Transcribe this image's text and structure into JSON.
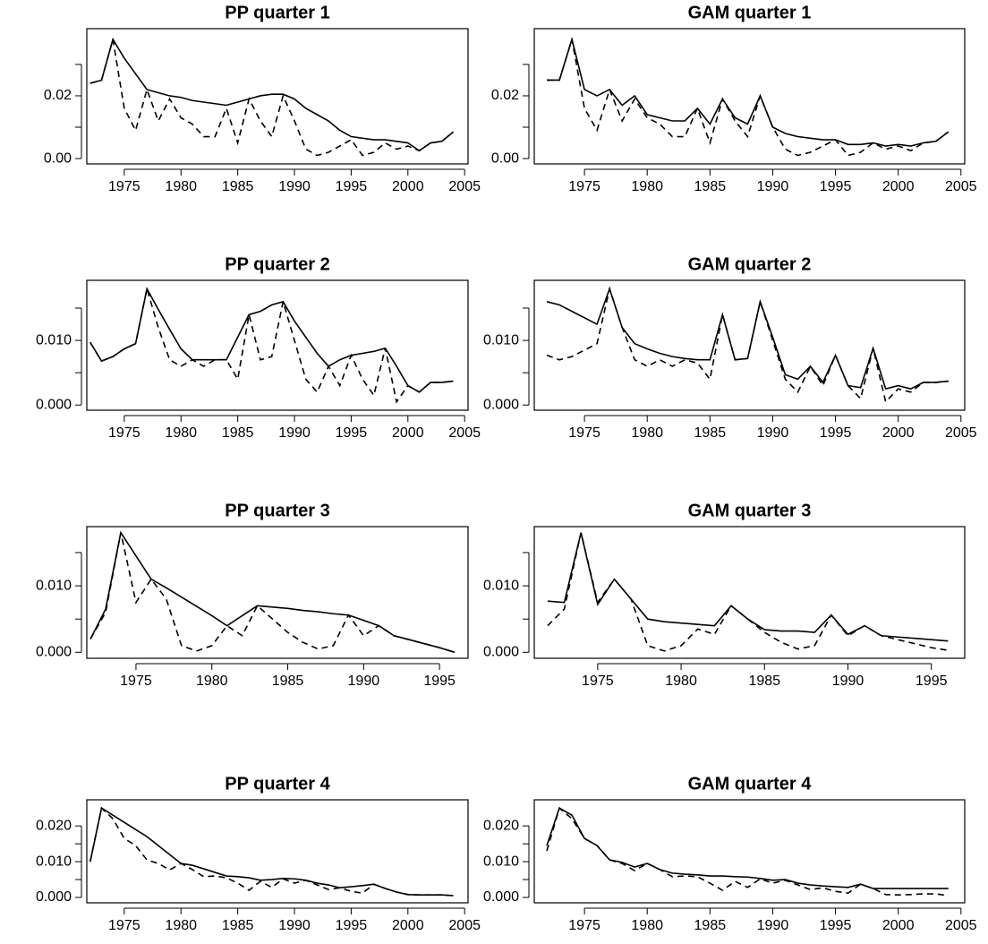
{
  "chart_data": [
    {
      "type": "line",
      "title": "PP quarter 1",
      "x": [
        1972,
        1973,
        1974,
        1975,
        1976,
        1977,
        1978,
        1979,
        1980,
        1981,
        1982,
        1983,
        1984,
        1985,
        1986,
        1987,
        1988,
        1989,
        1990,
        1991,
        1992,
        1993,
        1994,
        1995,
        1996,
        1997,
        1998,
        1999,
        2000,
        2001,
        2002,
        2003,
        2004
      ],
      "series": [
        {
          "linestyle": "solid",
          "color": "#000000",
          "values": [
            0.024,
            0.025,
            0.038,
            0.032,
            0.027,
            0.022,
            0.021,
            0.02,
            0.0195,
            0.0185,
            0.018,
            0.0175,
            0.017,
            0.018,
            0.019,
            0.02,
            0.0205,
            0.0205,
            0.019,
            0.016,
            0.014,
            0.012,
            0.009,
            0.007,
            0.0065,
            0.006,
            0.006,
            0.0055,
            0.005,
            0.0025,
            0.005,
            0.0055,
            0.0085
          ]
        },
        {
          "linestyle": "dashed",
          "color": "#000000",
          "values": [
            0.024,
            0.025,
            0.038,
            0.016,
            0.009,
            0.022,
            0.012,
            0.019,
            0.013,
            0.011,
            0.007,
            0.007,
            0.016,
            0.005,
            0.019,
            0.012,
            0.007,
            0.02,
            0.012,
            0.003,
            0.001,
            0.002,
            0.004,
            0.006,
            0.001,
            0.002,
            0.005,
            0.003,
            0.004,
            0.0025,
            0.005,
            0.0055,
            0.0085
          ]
        }
      ],
      "xlim": [
        1971.7,
        2005.3
      ],
      "ylim": [
        -0.0017,
        0.0414
      ],
      "xticks": [
        1975,
        1980,
        1985,
        1990,
        1995,
        2000,
        2005
      ],
      "yticks": [
        {
          "value": 0,
          "label": "0.00"
        },
        0.02
      ],
      "minor_yticks": [
        0.01,
        0.03
      ]
    },
    {
      "type": "line",
      "title": "GAM quarter 1",
      "x": [
        1972,
        1973,
        1974,
        1975,
        1976,
        1977,
        1978,
        1979,
        1980,
        1981,
        1982,
        1983,
        1984,
        1985,
        1986,
        1987,
        1988,
        1989,
        1990,
        1991,
        1992,
        1993,
        1994,
        1995,
        1996,
        1997,
        1998,
        1999,
        2000,
        2001,
        2002,
        2003,
        2004
      ],
      "series": [
        {
          "linestyle": "solid",
          "color": "#000000",
          "values": [
            0.025,
            0.025,
            0.038,
            0.022,
            0.02,
            0.022,
            0.017,
            0.02,
            0.014,
            0.013,
            0.012,
            0.012,
            0.016,
            0.011,
            0.019,
            0.013,
            0.011,
            0.02,
            0.01,
            0.008,
            0.007,
            0.0065,
            0.006,
            0.006,
            0.0045,
            0.0045,
            0.005,
            0.004,
            0.0045,
            0.004,
            0.005,
            0.0055,
            0.0085
          ]
        },
        {
          "linestyle": "dashed",
          "color": "#000000",
          "values": [
            0.025,
            0.025,
            0.038,
            0.016,
            0.009,
            0.022,
            0.012,
            0.019,
            0.013,
            0.011,
            0.007,
            0.007,
            0.016,
            0.005,
            0.019,
            0.012,
            0.007,
            0.02,
            0.01,
            0.003,
            0.001,
            0.002,
            0.004,
            0.006,
            0.001,
            0.002,
            0.005,
            0.003,
            0.004,
            0.0025,
            0.005,
            0.0055,
            0.0085
          ]
        }
      ],
      "xlim": [
        1971,
        2005.3
      ],
      "ylim": [
        -0.0017,
        0.0414
      ],
      "xticks": [
        1975,
        1980,
        1985,
        1990,
        1995,
        2000,
        2005
      ],
      "yticks": [
        {
          "value": 0,
          "label": "0.00"
        },
        0.02
      ],
      "minor_yticks": [
        0.01,
        0.03
      ]
    },
    {
      "type": "line",
      "title": "PP quarter 2",
      "x": [
        1972,
        1973,
        1974,
        1975,
        1976,
        1977,
        1978,
        1979,
        1980,
        1981,
        1982,
        1983,
        1984,
        1985,
        1986,
        1987,
        1988,
        1989,
        1990,
        1991,
        1992,
        1993,
        1994,
        1995,
        1996,
        1997,
        1998,
        1999,
        2000,
        2001,
        2002,
        2003,
        2004
      ],
      "series": [
        {
          "linestyle": "solid",
          "color": "#000000",
          "values": [
            0.0097,
            0.0068,
            0.0075,
            0.0087,
            0.0095,
            0.018,
            0.0148,
            0.0117,
            0.0087,
            0.007,
            0.007,
            0.007,
            0.007,
            0.0105,
            0.014,
            0.0145,
            0.0155,
            0.016,
            0.013,
            0.0105,
            0.008,
            0.006,
            0.007,
            0.0077,
            0.008,
            0.0083,
            0.0088,
            0.006,
            0.003,
            0.002,
            0.0035,
            0.0035,
            0.0037
          ]
        },
        {
          "linestyle": "dashed",
          "color": "#000000",
          "values": [
            0.0097,
            0.0068,
            0.0075,
            0.0087,
            0.0095,
            0.018,
            0.012,
            0.007,
            0.006,
            0.007,
            0.006,
            0.007,
            0.007,
            0.004,
            0.014,
            0.007,
            0.0075,
            0.016,
            0.01,
            0.004,
            0.002,
            0.006,
            0.003,
            0.0077,
            0.004,
            0.0015,
            0.0088,
            0.0005,
            0.003,
            0.002,
            0.0035,
            0.0035,
            0.0037
          ]
        }
      ],
      "xlim": [
        1971.7,
        2005.3
      ],
      "ylim": [
        -0.0008,
        0.0193
      ],
      "xticks": [
        1975,
        1980,
        1985,
        1990,
        1995,
        2000,
        2005
      ],
      "yticks": [
        {
          "value": 0,
          "label": "0.000"
        },
        {
          "value": 0.01,
          "label": "0.010"
        }
      ],
      "minor_yticks": [
        0.005,
        0.015
      ]
    },
    {
      "type": "line",
      "title": "GAM quarter 2",
      "x": [
        1972,
        1973,
        1974,
        1975,
        1976,
        1977,
        1978,
        1979,
        1980,
        1981,
        1982,
        1983,
        1984,
        1985,
        1986,
        1987,
        1988,
        1989,
        1990,
        1991,
        1992,
        1993,
        1994,
        1995,
        1996,
        1997,
        1998,
        1999,
        2000,
        2001,
        2002,
        2003,
        2004
      ],
      "series": [
        {
          "linestyle": "solid",
          "color": "#000000",
          "values": [
            0.016,
            0.0155,
            0.0145,
            0.0135,
            0.0125,
            0.018,
            0.012,
            0.0095,
            0.0087,
            0.008,
            0.0075,
            0.0072,
            0.007,
            0.007,
            0.014,
            0.007,
            0.0072,
            0.016,
            0.0105,
            0.0047,
            0.004,
            0.006,
            0.0035,
            0.0077,
            0.003,
            0.0027,
            0.0088,
            0.0025,
            0.003,
            0.0025,
            0.0035,
            0.0035,
            0.0037
          ]
        },
        {
          "linestyle": "dashed",
          "color": "#000000",
          "values": [
            0.0077,
            0.007,
            0.0075,
            0.0085,
            0.0095,
            0.018,
            0.012,
            0.007,
            0.006,
            0.007,
            0.006,
            0.007,
            0.0065,
            0.004,
            0.014,
            0.007,
            0.0072,
            0.016,
            0.01,
            0.004,
            0.002,
            0.006,
            0.003,
            0.0077,
            0.003,
            0.001,
            0.0088,
            0.0005,
            0.0025,
            0.002,
            0.0035,
            0.0035,
            0.0037
          ]
        }
      ],
      "xlim": [
        1971,
        2005.3
      ],
      "ylim": [
        -0.0008,
        0.0193
      ],
      "xticks": [
        1975,
        1980,
        1985,
        1990,
        1995,
        2000,
        2005
      ],
      "yticks": [
        {
          "value": 0,
          "label": "0.000"
        },
        {
          "value": 0.01,
          "label": "0.010"
        }
      ],
      "minor_yticks": [
        0.005,
        0.015
      ]
    },
    {
      "type": "line",
      "title": "PP quarter 3",
      "x": [
        1972,
        1973,
        1974,
        1975,
        1976,
        1977,
        1978,
        1979,
        1980,
        1981,
        1982,
        1983,
        1984,
        1985,
        1986,
        1987,
        1988,
        1989,
        1990,
        1991,
        1992,
        1993,
        1994,
        1995,
        1996
      ],
      "series": [
        {
          "linestyle": "solid",
          "color": "#000000",
          "values": [
            0.002,
            0.0065,
            0.018,
            0.0145,
            0.011,
            0.0097,
            0.0083,
            0.0069,
            0.0055,
            0.004,
            0.0055,
            0.007,
            0.0068,
            0.0066,
            0.0063,
            0.0061,
            0.0058,
            0.0056,
            0.0048,
            0.004,
            0.0025,
            0.0019,
            0.0013,
            0.0007,
            0.0
          ]
        },
        {
          "linestyle": "dashed",
          "color": "#000000",
          "values": [
            0.002,
            0.006,
            0.018,
            0.0075,
            0.011,
            0.008,
            0.001,
            0.0002,
            0.001,
            0.004,
            0.0025,
            0.007,
            0.005,
            0.003,
            0.0015,
            0.0005,
            0.001,
            0.0056,
            0.0025,
            0.004,
            0.0025,
            0.0019,
            0.0013,
            0.0007,
            0.0
          ]
        }
      ],
      "xlim": [
        1971.76,
        1996.88
      ],
      "ylim": [
        -0.0009,
        0.0189
      ],
      "xticks": [
        1975,
        1980,
        1985,
        1990,
        1995
      ],
      "yticks": [
        {
          "value": 0,
          "label": "0.000"
        },
        {
          "value": 0.01,
          "label": "0.010"
        }
      ],
      "minor_yticks": [
        0.005,
        0.015
      ]
    },
    {
      "type": "line",
      "title": "GAM quarter 3",
      "x": [
        1972,
        1973,
        1974,
        1975,
        1976,
        1977,
        1978,
        1979,
        1980,
        1981,
        1982,
        1983,
        1984,
        1985,
        1986,
        1987,
        1988,
        1989,
        1990,
        1991,
        1992,
        1993,
        1994,
        1995,
        1996
      ],
      "series": [
        {
          "linestyle": "solid",
          "color": "#000000",
          "values": [
            0.0077,
            0.0075,
            0.018,
            0.0072,
            0.011,
            0.008,
            0.005,
            0.0046,
            0.0044,
            0.0042,
            0.004,
            0.007,
            0.005,
            0.0034,
            0.0032,
            0.0032,
            0.003,
            0.0056,
            0.0027,
            0.004,
            0.0025,
            0.0023,
            0.0021,
            0.0019,
            0.0017
          ]
        },
        {
          "linestyle": "dashed",
          "color": "#000000",
          "values": [
            0.004,
            0.0065,
            0.018,
            0.0075,
            0.011,
            0.008,
            0.001,
            0.0002,
            0.001,
            0.0035,
            0.0027,
            0.007,
            0.005,
            0.003,
            0.0015,
            0.0005,
            0.001,
            0.0056,
            0.0025,
            0.004,
            0.0025,
            0.0019,
            0.0013,
            0.0007,
            0.0003
          ]
        }
      ],
      "xlim": [
        1971.2,
        1997.0
      ],
      "ylim": [
        -0.0009,
        0.0189
      ],
      "xticks": [
        1975,
        1980,
        1985,
        1990,
        1995
      ],
      "yticks": [
        {
          "value": 0,
          "label": "0.000"
        },
        {
          "value": 0.01,
          "label": "0.010"
        }
      ],
      "minor_yticks": [
        0.005,
        0.015
      ]
    },
    {
      "type": "line",
      "title": "PP quarter 4",
      "x": [
        1972,
        1973,
        1974,
        1975,
        1976,
        1977,
        1978,
        1979,
        1980,
        1981,
        1982,
        1983,
        1984,
        1985,
        1986,
        1987,
        1988,
        1989,
        1990,
        1991,
        1992,
        1993,
        1994,
        1995,
        1996,
        1997,
        1998,
        1999,
        2000,
        2001,
        2002,
        2003,
        2004
      ],
      "series": [
        {
          "linestyle": "solid",
          "color": "#000000",
          "values": [
            0.01,
            0.025,
            0.023,
            0.021,
            0.019,
            0.017,
            0.0145,
            0.012,
            0.0095,
            0.009,
            0.008,
            0.007,
            0.006,
            0.0058,
            0.0055,
            0.0048,
            0.005,
            0.0053,
            0.0052,
            0.0048,
            0.004,
            0.0035,
            0.0027,
            0.003,
            0.0033,
            0.0037,
            0.0025,
            0.0015,
            0.0008,
            0.0007,
            0.0007,
            0.0007,
            0.0005
          ]
        },
        {
          "linestyle": "dashed",
          "color": "#000000",
          "values": [
            0.01,
            0.025,
            0.022,
            0.0165,
            0.0145,
            0.0105,
            0.0095,
            0.0077,
            0.0095,
            0.0078,
            0.0058,
            0.006,
            0.0055,
            0.004,
            0.002,
            0.0045,
            0.0028,
            0.0052,
            0.004,
            0.0048,
            0.0035,
            0.0022,
            0.0027,
            0.0017,
            0.0012,
            0.0037,
            0.0025,
            0.0015,
            0.0008,
            0.0007,
            0.0007,
            0.0007,
            0.0005
          ]
        }
      ],
      "xlim": [
        1971.7,
        2005.3
      ],
      "ylim": [
        -0.0015,
        0.0273
      ],
      "xticks": [
        1975,
        1980,
        1985,
        1990,
        1995,
        2000,
        2005
      ],
      "yticks": [
        {
          "value": 0,
          "label": "0.000"
        },
        {
          "value": 0.01,
          "label": "0.010"
        },
        {
          "value": 0.02,
          "label": "0.020"
        }
      ],
      "minor_yticks": [
        0.005,
        0.015
      ]
    },
    {
      "type": "line",
      "title": "GAM quarter 4",
      "x": [
        1972,
        1973,
        1974,
        1975,
        1976,
        1977,
        1978,
        1979,
        1980,
        1981,
        1982,
        1983,
        1984,
        1985,
        1986,
        1987,
        1988,
        1989,
        1990,
        1991,
        1992,
        1993,
        1994,
        1995,
        1996,
        1997,
        1998,
        1999,
        2000,
        2001,
        2002,
        2003,
        2004
      ],
      "series": [
        {
          "linestyle": "solid",
          "color": "#000000",
          "values": [
            0.0145,
            0.025,
            0.023,
            0.0165,
            0.0145,
            0.0105,
            0.0098,
            0.0085,
            0.0095,
            0.0078,
            0.0068,
            0.0065,
            0.0063,
            0.006,
            0.006,
            0.0058,
            0.0057,
            0.0053,
            0.0048,
            0.005,
            0.004,
            0.0035,
            0.0032,
            0.003,
            0.0028,
            0.0037,
            0.0025,
            0.0025,
            0.0025,
            0.0025,
            0.0025,
            0.0025,
            0.0025
          ]
        },
        {
          "linestyle": "dashed",
          "color": "#000000",
          "values": [
            0.013,
            0.025,
            0.022,
            0.0165,
            0.0145,
            0.0105,
            0.0095,
            0.0075,
            0.0095,
            0.0078,
            0.0058,
            0.006,
            0.0058,
            0.004,
            0.002,
            0.0045,
            0.0028,
            0.0052,
            0.004,
            0.0048,
            0.0035,
            0.0022,
            0.0027,
            0.0017,
            0.0012,
            0.0037,
            0.0025,
            0.0008,
            0.0007,
            0.0008,
            0.001,
            0.001,
            0.0005
          ]
        }
      ],
      "xlim": [
        1971,
        2005.3
      ],
      "ylim": [
        -0.0015,
        0.0273
      ],
      "xticks": [
        1975,
        1980,
        1985,
        1990,
        1995,
        2000,
        2005
      ],
      "yticks": [
        {
          "value": 0,
          "label": "0.000"
        },
        {
          "value": 0.01,
          "label": "0.010"
        },
        {
          "value": 0.02,
          "label": "0.020"
        }
      ],
      "minor_yticks": [
        0.005,
        0.015
      ]
    }
  ]
}
